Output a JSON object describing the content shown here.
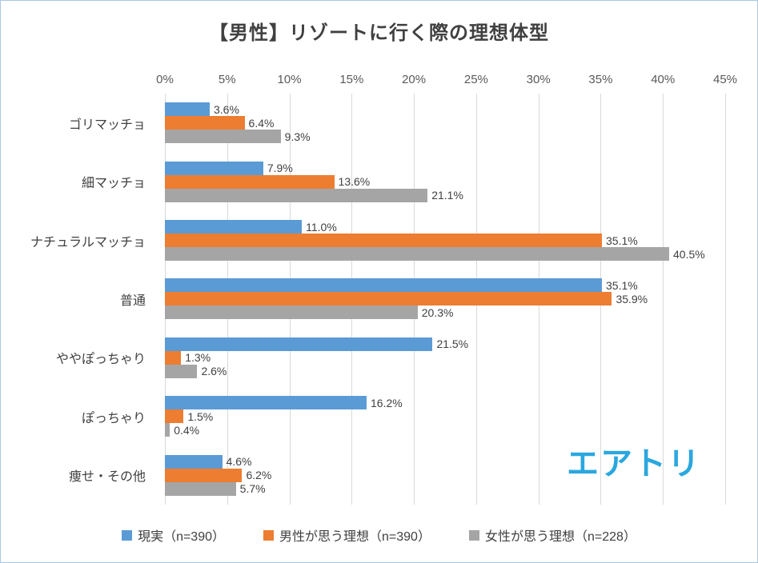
{
  "title": "【男性】リゾートに行く際の理想体型",
  "logo": "エアトリ",
  "colors": {
    "blue": "#5B9BD5",
    "orange": "#ED7D31",
    "gray": "#A5A5A5",
    "logo_blue": "#2BA7DF",
    "grid": "#D9D9D9",
    "frame_border": "#AAC8E4",
    "text": "#404040"
  },
  "chart_data": {
    "type": "bar",
    "orientation": "horizontal",
    "title": "【男性】リゾートに行く際の理想体型",
    "categories": [
      "ゴリマッチョ",
      "細マッチョ",
      "ナチュラルマッチョ",
      "普通",
      "ややぽっちゃり",
      "ぽっちゃり",
      "痩せ・その他"
    ],
    "series": [
      {
        "name": "現実（n=390）",
        "color": "#5B9BD5",
        "values": [
          3.6,
          7.9,
          11.0,
          35.1,
          21.5,
          16.2,
          4.6
        ]
      },
      {
        "name": "男性が思う理想（n=390）",
        "color": "#ED7D31",
        "values": [
          6.4,
          13.6,
          35.1,
          35.9,
          1.3,
          1.5,
          6.2
        ]
      },
      {
        "name": "女性が思う理想（n=228）",
        "color": "#A5A5A5",
        "values": [
          9.3,
          21.1,
          40.5,
          20.3,
          2.6,
          0.4,
          5.7
        ]
      }
    ],
    "x_ticks": [
      "0%",
      "5%",
      "10%",
      "15%",
      "20%",
      "25%",
      "30%",
      "35%",
      "40%",
      "45%"
    ],
    "xlim": [
      0,
      45
    ],
    "grid": true,
    "legend_position": "bottom",
    "value_suffix": "%",
    "value_decimals": 1
  }
}
